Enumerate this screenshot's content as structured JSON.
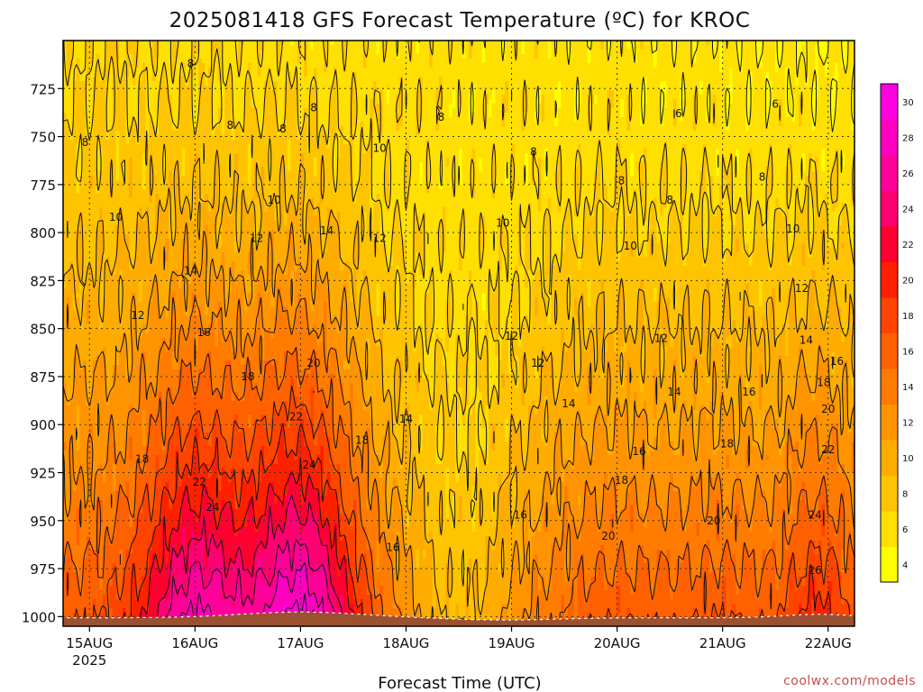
{
  "chart_data": {
    "type": "contour",
    "title": "2025081418 GFS Forecast Temperature (ºC) for KROC",
    "xlabel": "Forecast Time (UTC)",
    "ylabel": "",
    "credit": "coolwx.com/models",
    "x_ticks": [
      {
        "label": "15AUG",
        "sublabel": "2025",
        "hours": 6
      },
      {
        "label": "16AUG",
        "sublabel": "",
        "hours": 30
      },
      {
        "label": "17AUG",
        "sublabel": "",
        "hours": 54
      },
      {
        "label": "18AUG",
        "sublabel": "",
        "hours": 78
      },
      {
        "label": "19AUG",
        "sublabel": "",
        "hours": 102
      },
      {
        "label": "20AUG",
        "sublabel": "",
        "hours": 126
      },
      {
        "label": "21AUG",
        "sublabel": "",
        "hours": 150
      },
      {
        "label": "22AUG",
        "sublabel": "",
        "hours": 174
      }
    ],
    "x_range_hours": [
      0,
      180
    ],
    "y_ticks": [
      "725",
      "750",
      "775",
      "800",
      "825",
      "850",
      "875",
      "900",
      "925",
      "950",
      "975",
      "1000"
    ],
    "y_range_hpa": [
      700,
      1005
    ],
    "levels_c": [
      4,
      6,
      8,
      10,
      12,
      14,
      16,
      18,
      20,
      22,
      24,
      26,
      28,
      30
    ],
    "colorbar_labels": [
      "4",
      "6",
      "8",
      "10",
      "12",
      "14",
      "16",
      "18",
      "20",
      "22",
      "24",
      "26",
      "28",
      "30"
    ],
    "fill_colors": [
      "#ffff00",
      "#ffe000",
      "#ffc400",
      "#ffac00",
      "#ff9400",
      "#ff7c00",
      "#ff6000",
      "#ff4400",
      "#ff2000",
      "#ff0030",
      "#ff0070",
      "#ff0098",
      "#ff00c0",
      "#ff00e0"
    ],
    "contour_labels": [
      {
        "text": "8",
        "hours": 29,
        "hpa": 712
      },
      {
        "text": "8",
        "hours": 5,
        "hpa": 753
      },
      {
        "text": "8",
        "hours": 38,
        "hpa": 744
      },
      {
        "text": "8",
        "hours": 50,
        "hpa": 746
      },
      {
        "text": "8",
        "hours": 57,
        "hpa": 735
      },
      {
        "text": "8",
        "hours": 86,
        "hpa": 740
      },
      {
        "text": "8",
        "hours": 107,
        "hpa": 758
      },
      {
        "text": "8",
        "hours": 127,
        "hpa": 773
      },
      {
        "text": "8",
        "hours": 138,
        "hpa": 783
      },
      {
        "text": "8",
        "hours": 159,
        "hpa": 771
      },
      {
        "text": "6",
        "hours": 140,
        "hpa": 738
      },
      {
        "text": "6",
        "hours": 162,
        "hpa": 733
      },
      {
        "text": "10",
        "hours": 12,
        "hpa": 792
      },
      {
        "text": "10",
        "hours": 48,
        "hpa": 783
      },
      {
        "text": "10",
        "hours": 72,
        "hpa": 756
      },
      {
        "text": "10",
        "hours": 100,
        "hpa": 795
      },
      {
        "text": "10",
        "hours": 129,
        "hpa": 807
      },
      {
        "text": "10",
        "hours": 166,
        "hpa": 798
      },
      {
        "text": "12",
        "hours": 17,
        "hpa": 843
      },
      {
        "text": "12",
        "hours": 44,
        "hpa": 803
      },
      {
        "text": "12",
        "hours": 72,
        "hpa": 803
      },
      {
        "text": "12",
        "hours": 102,
        "hpa": 854
      },
      {
        "text": "12",
        "hours": 108,
        "hpa": 868
      },
      {
        "text": "12",
        "hours": 136,
        "hpa": 855
      },
      {
        "text": "12",
        "hours": 168,
        "hpa": 829
      },
      {
        "text": "14",
        "hours": 29,
        "hpa": 820
      },
      {
        "text": "14",
        "hours": 60,
        "hpa": 799
      },
      {
        "text": "14",
        "hours": 78,
        "hpa": 897
      },
      {
        "text": "14",
        "hours": 115,
        "hpa": 889
      },
      {
        "text": "14",
        "hours": 139,
        "hpa": 883
      },
      {
        "text": "14",
        "hours": 169,
        "hpa": 856
      },
      {
        "text": "16",
        "hours": 32,
        "hpa": 852
      },
      {
        "text": "16",
        "hours": 75,
        "hpa": 964
      },
      {
        "text": "16",
        "hours": 104,
        "hpa": 947
      },
      {
        "text": "16",
        "hours": 131,
        "hpa": 914
      },
      {
        "text": "16",
        "hours": 156,
        "hpa": 883
      },
      {
        "text": "16",
        "hours": 176,
        "hpa": 867
      },
      {
        "text": "18",
        "hours": 18,
        "hpa": 918
      },
      {
        "text": "18",
        "hours": 42,
        "hpa": 875
      },
      {
        "text": "18",
        "hours": 68,
        "hpa": 908
      },
      {
        "text": "18",
        "hours": 127,
        "hpa": 929
      },
      {
        "text": "18",
        "hours": 151,
        "hpa": 910
      },
      {
        "text": "18",
        "hours": 173,
        "hpa": 878
      },
      {
        "text": "20",
        "hours": 57,
        "hpa": 868
      },
      {
        "text": "20",
        "hours": 124,
        "hpa": 958
      },
      {
        "text": "20",
        "hours": 148,
        "hpa": 950
      },
      {
        "text": "20",
        "hours": 174,
        "hpa": 892
      },
      {
        "text": "22",
        "hours": 31,
        "hpa": 930
      },
      {
        "text": "22",
        "hours": 53,
        "hpa": 896
      },
      {
        "text": "22",
        "hours": 174,
        "hpa": 913
      },
      {
        "text": "24",
        "hours": 34,
        "hpa": 943
      },
      {
        "text": "24",
        "hours": 56,
        "hpa": 921
      },
      {
        "text": "24",
        "hours": 171,
        "hpa": 947
      },
      {
        "text": "26",
        "hours": 171,
        "hpa": 976
      }
    ]
  }
}
